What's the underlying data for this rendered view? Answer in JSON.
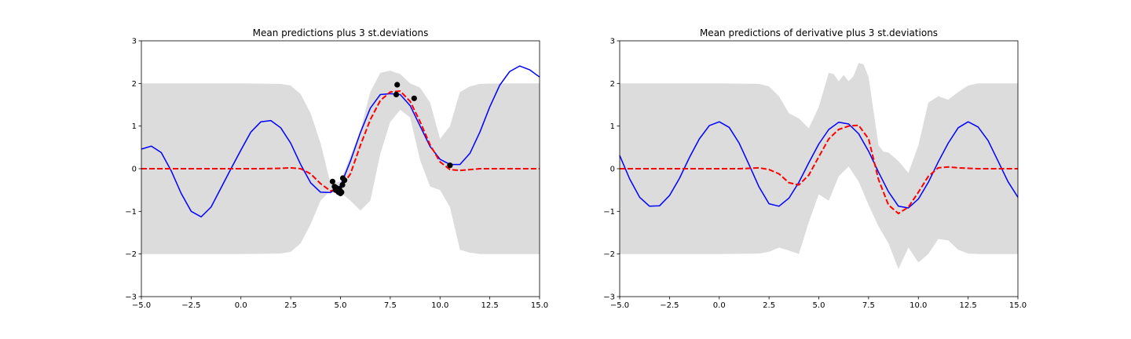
{
  "chart_data": [
    {
      "type": "line",
      "title": "Mean predictions plus 3 st.deviations",
      "xlim": [
        -5,
        15
      ],
      "ylim": [
        -3,
        3
      ],
      "xticks": [
        "−5.0",
        "−2.5",
        "0.0",
        "2.5",
        "5.0",
        "7.5",
        "10.0",
        "12.5",
        "15.0"
      ],
      "yticks": [
        "−3",
        "−2",
        "−1",
        "0",
        "1",
        "2",
        "3"
      ],
      "grid": false,
      "colors": {
        "true_function": "#0000ff",
        "mean_prediction": "#ff0000",
        "band": "#dcdcdc",
        "points": "#000000"
      },
      "true_function": {
        "x": [
          -5,
          -4.5,
          -4,
          -3.5,
          -3,
          -2.5,
          -2,
          -1.5,
          -1,
          -0.5,
          0,
          0.5,
          1,
          1.5,
          2,
          2.5,
          3,
          3.5,
          4,
          4.5,
          5,
          5.5,
          6,
          6.5,
          7,
          7.5,
          8,
          8.5,
          9,
          9.5,
          10,
          10.5,
          11,
          11.5,
          12,
          12.5,
          13,
          13.5,
          14,
          14.5,
          15
        ],
        "y": [
          0.46,
          0.53,
          0.38,
          -0.05,
          -0.58,
          -1.0,
          -1.13,
          -0.9,
          -0.45,
          0.0,
          0.44,
          0.86,
          1.1,
          1.13,
          0.96,
          0.6,
          0.1,
          -0.33,
          -0.55,
          -0.56,
          -0.4,
          0.18,
          0.85,
          1.42,
          1.74,
          1.76,
          1.74,
          1.48,
          1.0,
          0.52,
          0.22,
          0.1,
          0.1,
          0.36,
          0.86,
          1.45,
          1.96,
          2.28,
          2.41,
          2.32,
          2.15
        ]
      },
      "mean_prediction": {
        "x": [
          -5,
          -4,
          -3,
          -2,
          -1,
          0,
          1,
          2,
          2.5,
          3,
          3.5,
          4,
          4.5,
          5,
          5.5,
          6,
          6.5,
          7,
          7.5,
          8,
          8.5,
          9,
          9.5,
          10,
          10.5,
          11,
          11.5,
          12,
          13,
          14,
          15
        ],
        "y": [
          0,
          0,
          0,
          0,
          0,
          0,
          0,
          0.01,
          0.02,
          0.0,
          -0.12,
          -0.35,
          -0.52,
          -0.46,
          -0.12,
          0.55,
          1.15,
          1.6,
          1.8,
          1.82,
          1.58,
          1.1,
          0.56,
          0.16,
          -0.02,
          -0.04,
          -0.02,
          0.0,
          0.0,
          0.0,
          0.0
        ]
      },
      "band_upper": {
        "x": [
          -5,
          0,
          2,
          2.5,
          3,
          3.5,
          4,
          4.5,
          5,
          5.5,
          6,
          6.5,
          7,
          7.5,
          8,
          8.5,
          9,
          9.5,
          10,
          10.5,
          11,
          11.5,
          12,
          13,
          14,
          15
        ],
        "y": [
          2.0,
          2.0,
          1.99,
          1.95,
          1.75,
          1.3,
          0.6,
          -0.35,
          -0.3,
          0.3,
          0.9,
          1.8,
          2.25,
          2.3,
          2.22,
          2.0,
          1.9,
          1.55,
          0.7,
          1.0,
          1.8,
          1.93,
          1.99,
          2.0,
          2.0,
          2.0
        ]
      },
      "band_lower": {
        "x": [
          -5,
          0,
          2,
          2.5,
          3,
          3.5,
          4,
          4.5,
          5,
          5.5,
          6,
          6.5,
          7,
          7.5,
          8,
          8.5,
          9,
          9.5,
          10,
          10.5,
          11,
          11.5,
          12,
          13,
          14,
          15
        ],
        "y": [
          -2.0,
          -2.0,
          -1.99,
          -1.95,
          -1.75,
          -1.3,
          -0.75,
          -0.5,
          -0.55,
          -0.75,
          -0.98,
          -0.75,
          0.35,
          1.1,
          1.38,
          1.2,
          0.2,
          -0.42,
          -0.5,
          -0.9,
          -1.9,
          -1.97,
          -2.0,
          -2.0,
          -2.0,
          -2.0
        ]
      },
      "observations": {
        "x": [
          4.6,
          4.7,
          4.75,
          4.8,
          4.85,
          4.9,
          4.95,
          5.0,
          5.05,
          5.1,
          5.12,
          5.2,
          7.8,
          7.85,
          8.7,
          10.5
        ],
        "y": [
          -0.3,
          -0.42,
          -0.5,
          -0.45,
          -0.52,
          -0.55,
          -0.48,
          -0.58,
          -0.55,
          -0.38,
          -0.22,
          -0.27,
          1.74,
          1.97,
          1.65,
          0.08
        ]
      }
    },
    {
      "type": "line",
      "title": "Mean predictions of derivative plus 3 st.deviations",
      "xlim": [
        -5,
        15
      ],
      "ylim": [
        -3,
        3
      ],
      "xticks": [
        "−5.0",
        "−2.5",
        "0.0",
        "2.5",
        "5.0",
        "7.5",
        "10.0",
        "12.5",
        "15.0"
      ],
      "yticks": [
        "−3",
        "−2",
        "−1",
        "0",
        "1",
        "2",
        "3"
      ],
      "grid": false,
      "colors": {
        "true_function": "#0000ff",
        "mean_prediction": "#ff0000",
        "band": "#dcdcdc"
      },
      "true_function": {
        "x": [
          -5,
          -4.5,
          -4,
          -3.5,
          -3,
          -2.5,
          -2,
          -1.5,
          -1,
          -0.5,
          0,
          0.5,
          1,
          1.5,
          2,
          2.5,
          3,
          3.5,
          4,
          4.5,
          5,
          5.5,
          6,
          6.5,
          7,
          7.5,
          8,
          8.5,
          9,
          9.5,
          10,
          10.5,
          11,
          11.5,
          12,
          12.5,
          13,
          13.5,
          14,
          14.5,
          15
        ],
        "y": [
          0.31,
          -0.24,
          -0.67,
          -0.88,
          -0.87,
          -0.63,
          -0.23,
          0.26,
          0.7,
          1.01,
          1.1,
          0.97,
          0.6,
          0.09,
          -0.43,
          -0.82,
          -0.88,
          -0.69,
          -0.32,
          0.14,
          0.58,
          0.92,
          1.09,
          1.05,
          0.82,
          0.41,
          -0.08,
          -0.54,
          -0.88,
          -0.92,
          -0.71,
          -0.32,
          0.16,
          0.6,
          0.96,
          1.1,
          0.98,
          0.66,
          0.18,
          -0.3,
          -0.67
        ]
      },
      "mean_prediction": {
        "x": [
          -5,
          -4,
          -3,
          -2,
          -1,
          0,
          1,
          1.5,
          2,
          2.5,
          3,
          3.5,
          4,
          4.5,
          5,
          5.5,
          6,
          6.5,
          7,
          7.5,
          8,
          8.5,
          9,
          9.5,
          10,
          10.5,
          11,
          11.5,
          12,
          13,
          14,
          15
        ],
        "y": [
          0,
          0,
          0,
          0,
          0,
          0,
          0,
          0.01,
          0.02,
          -0.02,
          -0.12,
          -0.33,
          -0.38,
          -0.15,
          0.28,
          0.7,
          0.92,
          1.0,
          1.02,
          0.7,
          -0.25,
          -0.85,
          -1.05,
          -0.9,
          -0.55,
          -0.18,
          0.02,
          0.04,
          0.02,
          0.0,
          0.0,
          0.0
        ]
      },
      "band_upper": {
        "x": [
          -5,
          0,
          2,
          2.5,
          3,
          3.5,
          4,
          4.5,
          5,
          5.5,
          5.75,
          6,
          6.25,
          6.5,
          6.75,
          7,
          7.25,
          7.5,
          8,
          8.25,
          8.5,
          9,
          9.5,
          10,
          10.5,
          11,
          11.5,
          12,
          12.5,
          13,
          14,
          15
        ],
        "y": [
          2.0,
          2.0,
          1.99,
          1.93,
          1.7,
          1.3,
          1.18,
          0.95,
          1.45,
          2.25,
          2.22,
          2.05,
          2.2,
          2.05,
          2.18,
          2.48,
          2.45,
          2.15,
          0.55,
          0.4,
          0.38,
          0.18,
          -0.1,
          0.55,
          1.55,
          1.7,
          1.62,
          1.8,
          1.95,
          2.0,
          2.0,
          2.0
        ]
      },
      "band_lower": {
        "x": [
          -5,
          0,
          2,
          2.5,
          3,
          3.5,
          4,
          4.5,
          5,
          5.5,
          6,
          6.5,
          7,
          7.5,
          8,
          8.5,
          9,
          9.5,
          10,
          10.5,
          11,
          11.5,
          12,
          12.5,
          13,
          14,
          15
        ],
        "y": [
          -2.0,
          -2.0,
          -1.99,
          -1.95,
          -1.85,
          -1.92,
          -2.0,
          -1.25,
          -0.6,
          -0.75,
          -0.18,
          0.05,
          -0.3,
          -0.85,
          -1.35,
          -1.75,
          -2.35,
          -1.85,
          -2.2,
          -2.0,
          -1.65,
          -1.68,
          -1.9,
          -1.99,
          -2.0,
          -2.0,
          -2.0
        ]
      }
    }
  ]
}
